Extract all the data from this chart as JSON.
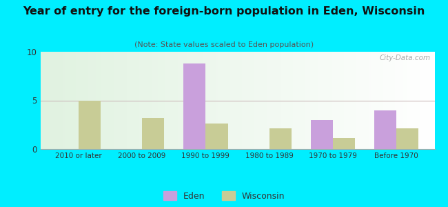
{
  "title": "Year of entry for the foreign-born population in Eden, Wisconsin",
  "subtitle": "(Note: State values scaled to Eden population)",
  "categories": [
    "2010 or later",
    "2000 to 2009",
    "1990 to 1999",
    "1980 to 1989",
    "1970 to 1979",
    "Before 1970"
  ],
  "eden_values": [
    0,
    0,
    8.8,
    0,
    3.0,
    4.0
  ],
  "wisconsin_values": [
    5.0,
    3.2,
    2.6,
    2.1,
    1.1,
    2.1
  ],
  "eden_color": "#c9a0dc",
  "wisconsin_color": "#c8cc96",
  "background_outer": "#00eeff",
  "ylim": [
    0,
    10
  ],
  "yticks": [
    0,
    5,
    10
  ],
  "bar_width": 0.35,
  "figsize": [
    6.5,
    3.0
  ],
  "dpi": 100,
  "title_fontsize": 11.5,
  "subtitle_fontsize": 8
}
